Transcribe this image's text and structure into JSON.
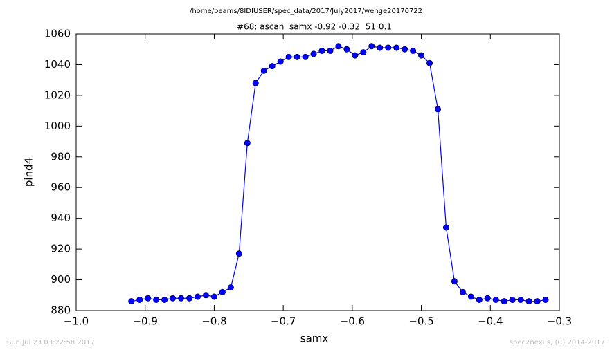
{
  "chart_data": {
    "type": "line",
    "suptitle": "/home/beams/8IDIUSER/spec_data/2017/July2017/wenge20170722",
    "title": "#68: ascan  samx -0.92 -0.32  51 0.1",
    "xlabel": "samx",
    "ylabel": "pind4",
    "footer_left": "Sun Jul 23 03:22:58 2017",
    "footer_right": "spec2nexus, (C) 2014-2017",
    "color": "#0000ff",
    "x": [
      -0.92,
      -0.908,
      -0.896,
      -0.884,
      -0.872,
      -0.86,
      -0.848,
      -0.836,
      -0.824,
      -0.812,
      -0.8,
      -0.788,
      -0.776,
      -0.764,
      -0.752,
      -0.74,
      -0.728,
      -0.716,
      -0.704,
      -0.692,
      -0.68,
      -0.668,
      -0.656,
      -0.644,
      -0.632,
      -0.62,
      -0.608,
      -0.596,
      -0.584,
      -0.572,
      -0.56,
      -0.548,
      -0.536,
      -0.524,
      -0.512,
      -0.5,
      -0.488,
      -0.476,
      -0.464,
      -0.452,
      -0.44,
      -0.428,
      -0.416,
      -0.404,
      -0.392,
      -0.38,
      -0.368,
      -0.356,
      -0.344,
      -0.332,
      -0.32
    ],
    "values": [
      886,
      887,
      888,
      887,
      887,
      888,
      888,
      888,
      889,
      890,
      889,
      892,
      895,
      917,
      989,
      1028,
      1036,
      1039,
      1042,
      1045,
      1045,
      1045,
      1047,
      1049,
      1049,
      1052,
      1050,
      1046,
      1048,
      1052,
      1051,
      1051,
      1051,
      1050,
      1049,
      1046,
      1041,
      1011,
      934,
      899,
      892,
      889,
      887,
      888,
      887,
      886,
      887,
      887,
      886,
      886,
      887
    ],
    "xlim": [
      -1.0,
      -0.3
    ],
    "xticks": [
      {
        "value": -1.0,
        "label": "−1.0"
      },
      {
        "value": -0.9,
        "label": "−0.9"
      },
      {
        "value": -0.8,
        "label": "−0.8"
      },
      {
        "value": -0.7,
        "label": "−0.7"
      },
      {
        "value": -0.6,
        "label": "−0.6"
      },
      {
        "value": -0.5,
        "label": "−0.5"
      },
      {
        "value": -0.4,
        "label": "−0.4"
      },
      {
        "value": -0.3,
        "label": "−0.3"
      }
    ],
    "ylim": [
      880,
      1060
    ],
    "yticks": [
      880,
      900,
      920,
      940,
      960,
      980,
      1000,
      1020,
      1040,
      1060
    ],
    "grid": false
  }
}
